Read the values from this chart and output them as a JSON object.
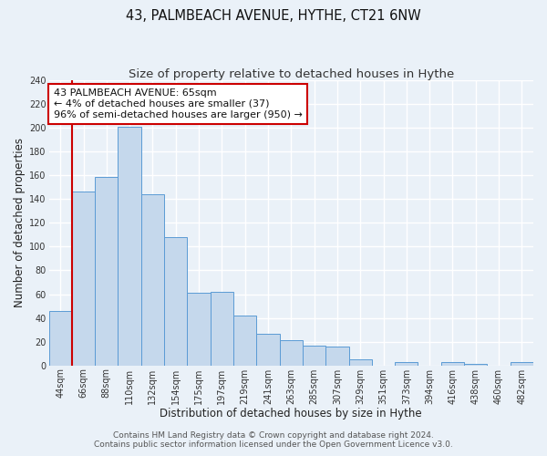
{
  "title": "43, PALMBEACH AVENUE, HYTHE, CT21 6NW",
  "subtitle": "Size of property relative to detached houses in Hythe",
  "xlabel": "Distribution of detached houses by size in Hythe",
  "ylabel": "Number of detached properties",
  "bar_labels": [
    "44sqm",
    "66sqm",
    "88sqm",
    "110sqm",
    "132sqm",
    "154sqm",
    "175sqm",
    "197sqm",
    "219sqm",
    "241sqm",
    "263sqm",
    "285sqm",
    "307sqm",
    "329sqm",
    "351sqm",
    "373sqm",
    "394sqm",
    "416sqm",
    "438sqm",
    "460sqm",
    "482sqm"
  ],
  "bar_heights": [
    46,
    146,
    159,
    201,
    144,
    108,
    61,
    62,
    42,
    27,
    21,
    17,
    16,
    5,
    0,
    3,
    0,
    3,
    1,
    0,
    3
  ],
  "bar_color": "#c5d8ec",
  "bar_edge_color": "#5b9bd5",
  "vline_color": "#cc0000",
  "vline_x_index": 0.5,
  "annotation_text": "43 PALMBEACH AVENUE: 65sqm\n← 4% of detached houses are smaller (37)\n96% of semi-detached houses are larger (950) →",
  "annotation_box_color": "#ffffff",
  "annotation_box_edge": "#cc0000",
  "ylim": [
    0,
    240
  ],
  "yticks": [
    0,
    20,
    40,
    60,
    80,
    100,
    120,
    140,
    160,
    180,
    200,
    220,
    240
  ],
  "footer_line1": "Contains HM Land Registry data © Crown copyright and database right 2024.",
  "footer_line2": "Contains public sector information licensed under the Open Government Licence v3.0.",
  "bg_color": "#eaf1f8",
  "grid_color": "#d8e4f0",
  "title_fontsize": 10.5,
  "subtitle_fontsize": 9.5,
  "axis_label_fontsize": 8.5,
  "tick_fontsize": 7,
  "annotation_fontsize": 8,
  "footer_fontsize": 6.5
}
